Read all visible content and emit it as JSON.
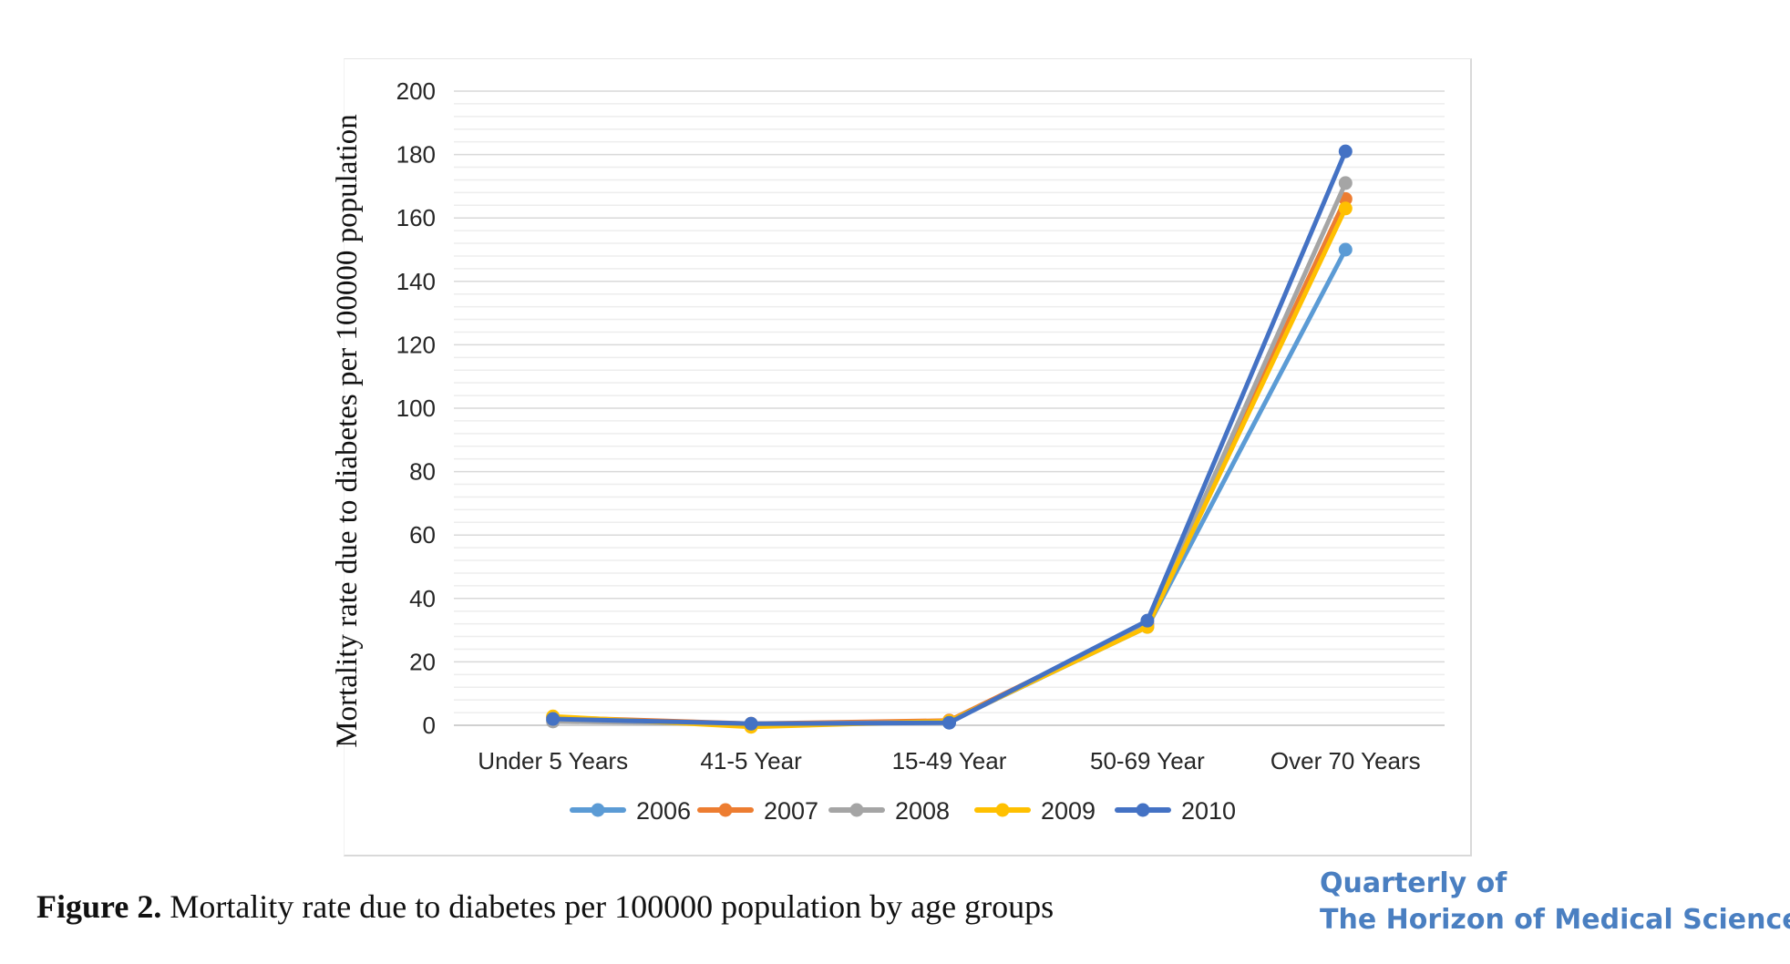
{
  "chart_data": {
    "type": "line",
    "title": "",
    "xlabel": "",
    "ylabel": "Mortality rate due to diabetes per 100000 population",
    "categories": [
      "Under 5 Years",
      "41-5 Year",
      "15-49 Year",
      "50-69 Year",
      "Over 70 Years"
    ],
    "ylim": [
      0,
      200
    ],
    "yticks": [
      0,
      20,
      40,
      60,
      80,
      100,
      120,
      140,
      160,
      180,
      200
    ],
    "grid": true,
    "legend_position": "bottom",
    "series": [
      {
        "name": "2006",
        "color": "#5b9bd5",
        "values": [
          1.5,
          0.3,
          1.2,
          31,
          150
        ]
      },
      {
        "name": "2007",
        "color": "#ed7d31",
        "values": [
          2.5,
          0.5,
          1.5,
          32,
          166
        ]
      },
      {
        "name": "2008",
        "color": "#a5a5a5",
        "values": [
          1.2,
          0.4,
          1.0,
          31.5,
          171
        ]
      },
      {
        "name": "2009",
        "color": "#ffc000",
        "values": [
          2.8,
          -0.5,
          1.3,
          31,
          163
        ]
      },
      {
        "name": "2010",
        "color": "#4472c4",
        "values": [
          2.0,
          0.5,
          0.8,
          33,
          181
        ]
      }
    ]
  },
  "caption": {
    "label": "Figure 2.",
    "text": " Mortality rate due to diabetes per 100000 population by age groups"
  },
  "logo": {
    "line1": "Quarterly of",
    "line2": "The Horizon of Medical Sciences"
  }
}
